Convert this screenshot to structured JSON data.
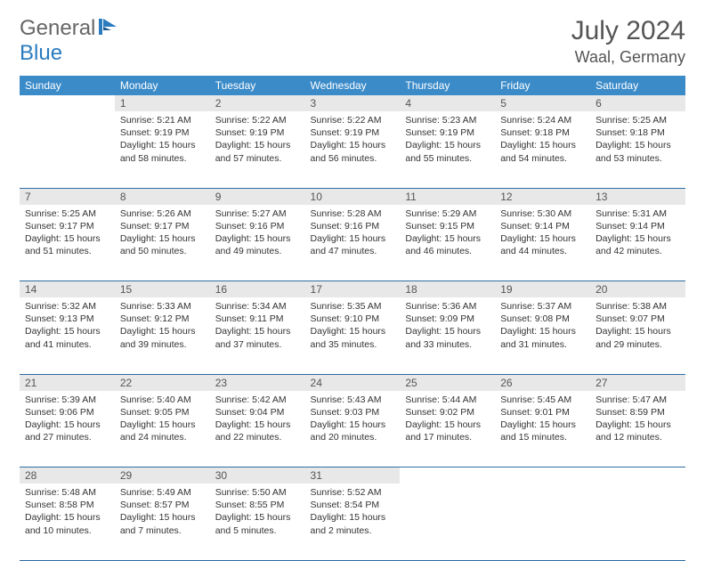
{
  "logo": {
    "general": "General",
    "blue": "Blue"
  },
  "title": "July 2024",
  "location": "Waal, Germany",
  "colors": {
    "header_bg": "#3b8bc9",
    "header_text": "#ffffff",
    "daynum_bg": "#e8e8e8",
    "border": "#2d6ca3",
    "text": "#333333",
    "logo_blue": "#2b7bbf"
  },
  "daysOfWeek": [
    "Sunday",
    "Monday",
    "Tuesday",
    "Wednesday",
    "Thursday",
    "Friday",
    "Saturday"
  ],
  "weeks": [
    {
      "nums": [
        "",
        "1",
        "2",
        "3",
        "4",
        "5",
        "6"
      ],
      "cells": [
        null,
        {
          "sr": "5:21 AM",
          "ss": "9:19 PM",
          "dh": "15",
          "dm": "58"
        },
        {
          "sr": "5:22 AM",
          "ss": "9:19 PM",
          "dh": "15",
          "dm": "57"
        },
        {
          "sr": "5:22 AM",
          "ss": "9:19 PM",
          "dh": "15",
          "dm": "56"
        },
        {
          "sr": "5:23 AM",
          "ss": "9:19 PM",
          "dh": "15",
          "dm": "55"
        },
        {
          "sr": "5:24 AM",
          "ss": "9:18 PM",
          "dh": "15",
          "dm": "54"
        },
        {
          "sr": "5:25 AM",
          "ss": "9:18 PM",
          "dh": "15",
          "dm": "53"
        }
      ]
    },
    {
      "nums": [
        "7",
        "8",
        "9",
        "10",
        "11",
        "12",
        "13"
      ],
      "cells": [
        {
          "sr": "5:25 AM",
          "ss": "9:17 PM",
          "dh": "15",
          "dm": "51"
        },
        {
          "sr": "5:26 AM",
          "ss": "9:17 PM",
          "dh": "15",
          "dm": "50"
        },
        {
          "sr": "5:27 AM",
          "ss": "9:16 PM",
          "dh": "15",
          "dm": "49"
        },
        {
          "sr": "5:28 AM",
          "ss": "9:16 PM",
          "dh": "15",
          "dm": "47"
        },
        {
          "sr": "5:29 AM",
          "ss": "9:15 PM",
          "dh": "15",
          "dm": "46"
        },
        {
          "sr": "5:30 AM",
          "ss": "9:14 PM",
          "dh": "15",
          "dm": "44"
        },
        {
          "sr": "5:31 AM",
          "ss": "9:14 PM",
          "dh": "15",
          "dm": "42"
        }
      ]
    },
    {
      "nums": [
        "14",
        "15",
        "16",
        "17",
        "18",
        "19",
        "20"
      ],
      "cells": [
        {
          "sr": "5:32 AM",
          "ss": "9:13 PM",
          "dh": "15",
          "dm": "41"
        },
        {
          "sr": "5:33 AM",
          "ss": "9:12 PM",
          "dh": "15",
          "dm": "39"
        },
        {
          "sr": "5:34 AM",
          "ss": "9:11 PM",
          "dh": "15",
          "dm": "37"
        },
        {
          "sr": "5:35 AM",
          "ss": "9:10 PM",
          "dh": "15",
          "dm": "35"
        },
        {
          "sr": "5:36 AM",
          "ss": "9:09 PM",
          "dh": "15",
          "dm": "33"
        },
        {
          "sr": "5:37 AM",
          "ss": "9:08 PM",
          "dh": "15",
          "dm": "31"
        },
        {
          "sr": "5:38 AM",
          "ss": "9:07 PM",
          "dh": "15",
          "dm": "29"
        }
      ]
    },
    {
      "nums": [
        "21",
        "22",
        "23",
        "24",
        "25",
        "26",
        "27"
      ],
      "cells": [
        {
          "sr": "5:39 AM",
          "ss": "9:06 PM",
          "dh": "15",
          "dm": "27"
        },
        {
          "sr": "5:40 AM",
          "ss": "9:05 PM",
          "dh": "15",
          "dm": "24"
        },
        {
          "sr": "5:42 AM",
          "ss": "9:04 PM",
          "dh": "15",
          "dm": "22"
        },
        {
          "sr": "5:43 AM",
          "ss": "9:03 PM",
          "dh": "15",
          "dm": "20"
        },
        {
          "sr": "5:44 AM",
          "ss": "9:02 PM",
          "dh": "15",
          "dm": "17"
        },
        {
          "sr": "5:45 AM",
          "ss": "9:01 PM",
          "dh": "15",
          "dm": "15"
        },
        {
          "sr": "5:47 AM",
          "ss": "8:59 PM",
          "dh": "15",
          "dm": "12"
        }
      ]
    },
    {
      "nums": [
        "28",
        "29",
        "30",
        "31",
        "",
        "",
        ""
      ],
      "cells": [
        {
          "sr": "5:48 AM",
          "ss": "8:58 PM",
          "dh": "15",
          "dm": "10"
        },
        {
          "sr": "5:49 AM",
          "ss": "8:57 PM",
          "dh": "15",
          "dm": "7"
        },
        {
          "sr": "5:50 AM",
          "ss": "8:55 PM",
          "dh": "15",
          "dm": "5"
        },
        {
          "sr": "5:52 AM",
          "ss": "8:54 PM",
          "dh": "15",
          "dm": "2"
        },
        null,
        null,
        null
      ]
    }
  ],
  "labels": {
    "sunrise": "Sunrise:",
    "sunset": "Sunset:",
    "daylight": "Daylight:",
    "hours": "hours",
    "and": "and",
    "minutes": "minutes."
  }
}
